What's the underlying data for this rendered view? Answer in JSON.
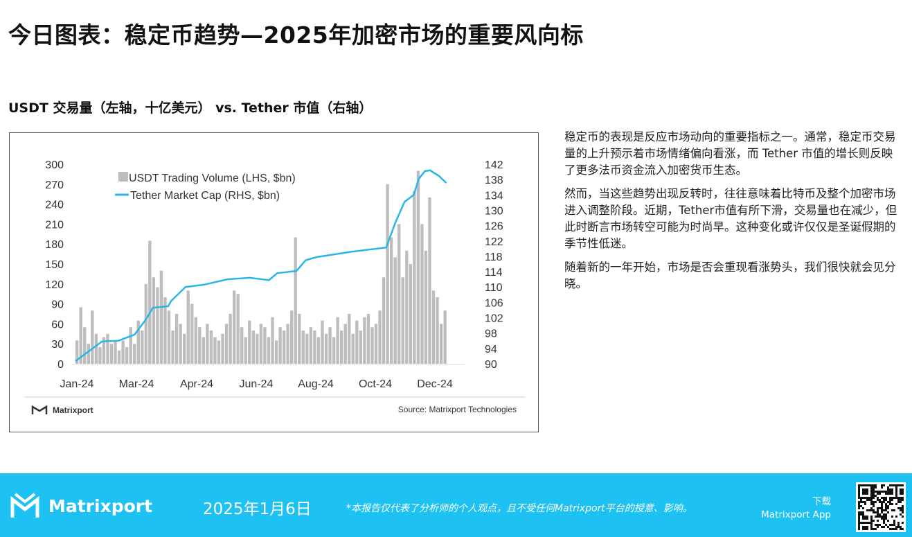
{
  "title": "今日图表：稳定币趋势—2025年加密市场的重要风向标",
  "subtitle": "USDT 交易量（左轴，十亿美元） vs. Tether 市值（右轴）",
  "chart_data": {
    "type": "bar+line",
    "legend": [
      "USDT Trading Volume (LHS, $bn)",
      "Tether Market Cap (RHS, $bn)"
    ],
    "legend_position": "top-left",
    "x_tick_labels": [
      "Jan-24",
      "Mar-24",
      "Apr-24",
      "Jun-24",
      "Aug-24",
      "Oct-24",
      "Dec-24"
    ],
    "y_left": {
      "ticks": [
        0,
        30,
        60,
        90,
        120,
        150,
        180,
        210,
        240,
        270,
        300
      ],
      "range": [
        0,
        300
      ]
    },
    "y_right": {
      "ticks": [
        90,
        94,
        98,
        102,
        106,
        110,
        114,
        118,
        122,
        126,
        130,
        134,
        138,
        142
      ],
      "range": [
        90,
        142
      ]
    },
    "series": [
      {
        "name": "USDT Trading Volume (LHS, $bn)",
        "type": "bar",
        "color": "#bdbdbd",
        "x_range_days": [
          0,
          365
        ],
        "values": [
          35,
          85,
          55,
          30,
          80,
          45,
          25,
          40,
          45,
          30,
          35,
          20,
          35,
          25,
          55,
          30,
          65,
          50,
          120,
          185,
          130,
          115,
          140,
          100,
          80,
          50,
          75,
          60,
          45,
          110,
          90,
          70,
          55,
          40,
          60,
          50,
          40,
          35,
          45,
          60,
          75,
          110,
          105,
          55,
          40,
          65,
          50,
          45,
          60,
          55,
          40,
          70,
          35,
          55,
          50,
          60,
          80,
          190,
          75,
          50,
          45,
          55,
          50,
          40,
          65,
          45,
          55,
          40,
          70,
          50,
          60,
          75,
          45,
          65,
          50,
          70,
          75,
          55,
          60,
          80,
          130,
          270,
          190,
          160,
          210,
          130,
          170,
          150,
          260,
          290,
          210,
          170,
          250,
          110,
          100,
          60,
          80
        ]
      },
      {
        "name": "Tether Market Cap (RHS, $bn)",
        "type": "line",
        "color": "#29b6e6",
        "points_day_value": [
          [
            0,
            90.7
          ],
          [
            26,
            95.8
          ],
          [
            42,
            96
          ],
          [
            58,
            97.6
          ],
          [
            69,
            101.5
          ],
          [
            76,
            104.6
          ],
          [
            91,
            105
          ],
          [
            94,
            106.4
          ],
          [
            108,
            110
          ],
          [
            126,
            110.6
          ],
          [
            149,
            112
          ],
          [
            171,
            112.4
          ],
          [
            190,
            111.8
          ],
          [
            198,
            113.6
          ],
          [
            217,
            114.2
          ],
          [
            226,
            117
          ],
          [
            237,
            117.8
          ],
          [
            271,
            119.2
          ],
          [
            305,
            120.3
          ],
          [
            309,
            123.2
          ],
          [
            314,
            126.8
          ],
          [
            323,
            132.2
          ],
          [
            332,
            134
          ],
          [
            337,
            138.2
          ],
          [
            343,
            140.2
          ],
          [
            348,
            140.4
          ],
          [
            357,
            138.9
          ],
          [
            364,
            137.1
          ]
        ]
      }
    ],
    "brand": "Matrixport",
    "source": "Source: Matrixport Technologies"
  },
  "description": [
    "稳定币的表现是反应市场动向的重要指标之一。通常，稳定币交易量的上升预示着市场情绪偏向看涨，而 Tether 市值的增长则反映了更多法币资金流入加密货币生态。",
    "然而，当这些趋势出现反转时，往往意味着比特币及整个加密市场进入调整阶段。近期，Tether市值有所下滑，交易量也在减少，但此时断言市场转空可能为时尚早。这种变化或许仅仅是圣诞假期的季节性低迷。",
    "随着新的一年开始，市场是否会重现看涨势头，我们很快就会见分晓。"
  ],
  "footer": {
    "brand": "Matrixport",
    "date": "2025年1月6日",
    "note": "*本报告仅代表了分析师的个人观点，且不受任何Matrixport平台的授意、影响。",
    "download": "下载",
    "app": "Matrixport App",
    "color": "#1dc2f3"
  }
}
